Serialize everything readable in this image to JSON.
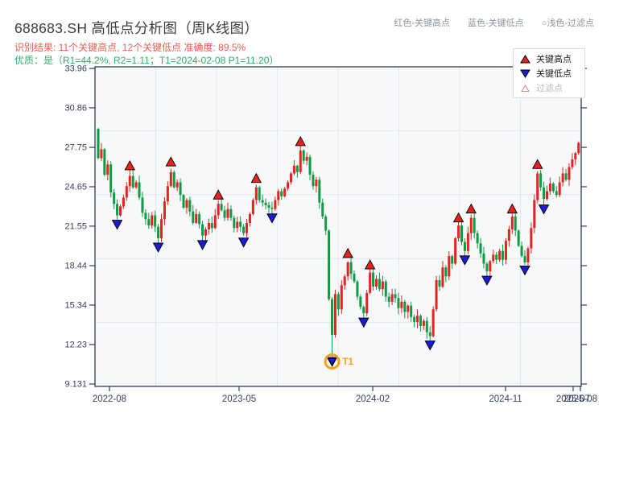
{
  "header": {
    "title": "688683.SH 高低点分析图（周K线图）",
    "result_line": "识别结果: 11个关键高点, 12个关键低点  准确度: 89.5%",
    "quality_line": "优质：是（R1=44.2%, R2=1.11；T1=2024-02-08 P1=11.20）",
    "hint_high": "红色-关键高点",
    "hint_low": "蓝色-关键低点",
    "hint_filtered": "○浅色-过滤点"
  },
  "plot_legend": {
    "high_label": "关键高点",
    "low_label": "关键低点",
    "filtered_label": "过滤点"
  },
  "colors": {
    "candle_up": "#e02420",
    "candle_down": "#119944",
    "marker_high": "#e8231d",
    "marker_low": "#1b1bd4",
    "marker_edge": "#000000",
    "t1_orange": "#f5a01e",
    "axis": "#2f3d56",
    "tick_label": "#36415c",
    "grid": "#e4e7ea",
    "plot_bg": "#f7f8f9",
    "title_text": "#3c3c3c",
    "result_text": "#f25b50",
    "quality_text": "#2eae68",
    "hint_text": "#8795a1"
  },
  "chart_data": {
    "type": "candlestick",
    "symbol": "688683.SH",
    "period": "weekly",
    "title": "688683.SH 高低点分析图（周K线图）",
    "y_tick_labels": [
      "33.96",
      "30.86",
      "27.75",
      "24.65",
      "21.55",
      "18.44",
      "15.34",
      "12.23",
      "9.131"
    ],
    "y_range": [
      9.131,
      33.96
    ],
    "x_ticks": [
      {
        "label": "2022-08",
        "fx": 0.0298
      },
      {
        "label": "2023-05",
        "fx": 0.2964
      },
      {
        "label": "2024-02",
        "fx": 0.5712
      },
      {
        "label": "2024-11",
        "fx": 0.8444
      },
      {
        "label": "2025-07",
        "fx": 0.9834
      },
      {
        "label": "2025-08",
        "fx": 0.9983
      }
    ],
    "first_open": 29.2,
    "closes": [
      26.9,
      27.6,
      25.6,
      26.4,
      24.2,
      23.3,
      22.4,
      23.1,
      23.8,
      24.7,
      25.5,
      24.6,
      25.0,
      23.8,
      22.6,
      22.1,
      21.6,
      22.4,
      21.5,
      20.6,
      22.1,
      23.5,
      24.7,
      25.8,
      24.6,
      25.0,
      24.0,
      23.0,
      23.6,
      22.7,
      21.8,
      22.5,
      21.7,
      20.8,
      21.3,
      21.8,
      21.4,
      22.4,
      23.3,
      22.8,
      22.2,
      22.9,
      22.2,
      21.4,
      21.9,
      21.5,
      21.0,
      21.8,
      22.5,
      23.6,
      24.6,
      23.6,
      23.4,
      23.2,
      23.0,
      22.9,
      23.6,
      24.3,
      23.9,
      24.5,
      25.0,
      25.7,
      26.3,
      25.8,
      27.5,
      26.7,
      27.0,
      25.6,
      24.7,
      25.2,
      23.4,
      22.3,
      21.2,
      15.8,
      13.0,
      16.2,
      15.0,
      16.9,
      17.6,
      18.7,
      17.8,
      17.2,
      16.0,
      15.2,
      14.7,
      16.3,
      17.9,
      16.8,
      17.4,
      16.6,
      17.2,
      16.0,
      15.6,
      16.2,
      15.9,
      15.1,
      15.6,
      14.8,
      15.3,
      14.4,
      14.0,
      14.5,
      13.7,
      14.1,
      13.2,
      12.9,
      15.0,
      17.3,
      16.8,
      18.3,
      17.6,
      19.2,
      18.6,
      20.6,
      21.6,
      20.3,
      19.6,
      21.0,
      22.2,
      21.0,
      20.2,
      19.4,
      18.6,
      18.0,
      18.8,
      19.3,
      18.9,
      19.6,
      18.9,
      20.4,
      21.3,
      22.3,
      21.2,
      20.0,
      19.2,
      18.7,
      19.8,
      21.4,
      23.6,
      25.7,
      24.6,
      23.7,
      24.3,
      24.9,
      24.3,
      24.0,
      25.0,
      25.7,
      25.2,
      26.2,
      26.8,
      27.3,
      28.1
    ],
    "wick_low_overrides": {
      "74": 11.2,
      "105": 12.55
    },
    "wick_high_overrides": {
      "64": 27.9
    },
    "key_highs": [
      [
        10,
        26.3
      ],
      [
        23,
        26.6
      ],
      [
        38,
        24.0
      ],
      [
        50,
        25.3
      ],
      [
        64,
        28.2
      ],
      [
        79,
        19.4
      ],
      [
        86,
        18.5
      ],
      [
        114,
        22.2
      ],
      [
        118,
        22.9
      ],
      [
        131,
        22.9
      ],
      [
        139,
        26.4
      ]
    ],
    "key_lows": [
      [
        6,
        21.7
      ],
      [
        19,
        19.9
      ],
      [
        33,
        20.1
      ],
      [
        46,
        20.3
      ],
      [
        55,
        22.2
      ],
      [
        74,
        10.9
      ],
      [
        84,
        14.0
      ],
      [
        105,
        12.2
      ],
      [
        116,
        18.9
      ],
      [
        123,
        17.3
      ],
      [
        135,
        18.1
      ],
      [
        141,
        22.9
      ]
    ],
    "t1": {
      "label": "T1",
      "week": 74,
      "price": 10.9,
      "date": "2024-02-08",
      "p1": "11.20"
    },
    "stats": {
      "key_high_count": 11,
      "key_low_count": 12,
      "accuracy": "89.5%",
      "r1": "44.2%",
      "r2": "1.11"
    }
  }
}
